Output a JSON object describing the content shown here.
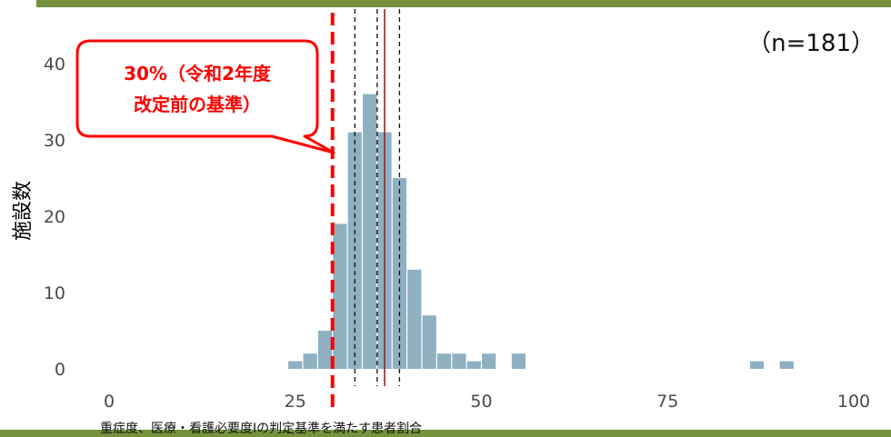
{
  "chart_data": {
    "type": "bar",
    "ylabel": "施設数",
    "xlabel": "重症度、医療・看護必要度Iの判定基準を満たす患者割合",
    "xlim": [
      0,
      100
    ],
    "ylim": [
      0,
      45
    ],
    "x_ticks": [
      "0",
      "25",
      "50",
      "75",
      "100"
    ],
    "y_ticks": [
      "0",
      "10",
      "20",
      "30",
      "40"
    ],
    "bin_width": 2,
    "bin_starts": [
      24,
      26,
      28,
      30,
      32,
      34,
      36,
      38,
      40,
      42,
      44,
      46,
      48,
      50,
      52,
      54,
      86,
      90
    ],
    "values": [
      1,
      2,
      5,
      19,
      31,
      36,
      31,
      25,
      13,
      7,
      2,
      2,
      1,
      2,
      0,
      2,
      1,
      1
    ],
    "reference_lines": [
      {
        "x": 30,
        "style": "red-dashed"
      },
      {
        "x": 33,
        "style": "black-dashed"
      },
      {
        "x": 36,
        "style": "black-dashed"
      },
      {
        "x": 37,
        "style": "dark-red-solid"
      },
      {
        "x": 39,
        "style": "black-dashed"
      }
    ],
    "annotations": {
      "sample_size": "（n=181）",
      "callout_line1": "30%（令和2年度",
      "callout_line2": "改定前の基準）"
    },
    "colors": {
      "bars": "#8eb0c2",
      "threshold": "#ff0000",
      "median": "#8b1a1a",
      "frame": "#76923c"
    }
  }
}
